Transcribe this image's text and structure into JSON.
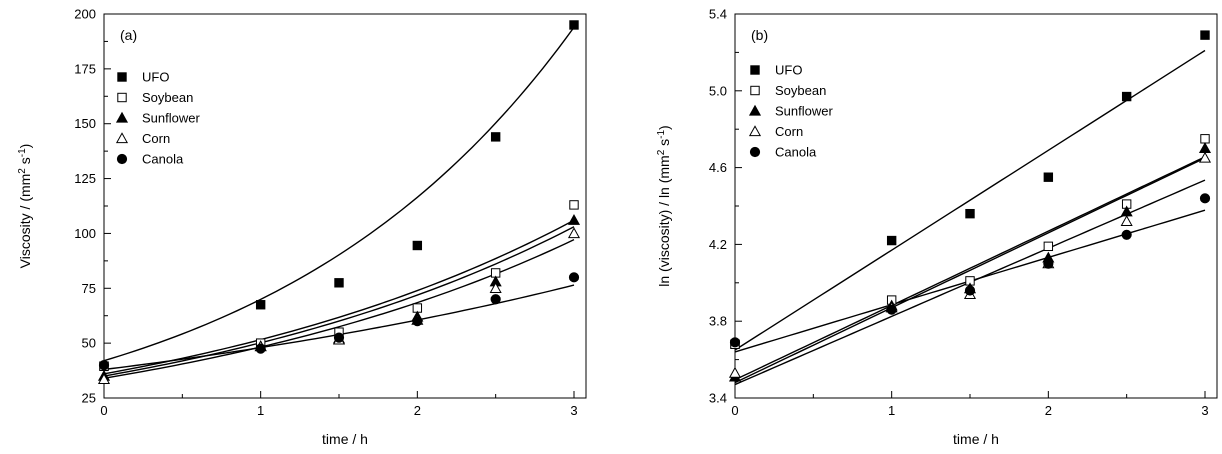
{
  "chart_data": [
    {
      "type": "scatter",
      "panel_label": "(a)",
      "xlabel": "time / h",
      "ylabel": "Viscosity / (mm² s⁻¹)",
      "ylabel_parts": {
        "base": "Viscosity / (mm",
        "sup1": "2",
        "mid": " s",
        "sup2": "-1",
        "end": ")"
      },
      "xlim": [
        0,
        3
      ],
      "ylim": [
        25,
        200
      ],
      "xticks": [
        0,
        1,
        2,
        3
      ],
      "yticks": [
        25,
        50,
        75,
        100,
        125,
        150,
        175,
        200
      ],
      "x": [
        0,
        1,
        1.5,
        2,
        2.5,
        3
      ],
      "fit": "exponential",
      "legend_position": "top-left",
      "series": [
        {
          "name": "UFO",
          "marker": "filled-square",
          "values": [
            39.5,
            67.5,
            77.5,
            94.5,
            144,
            195
          ],
          "fit_params": [
            42.0,
            0.51
          ]
        },
        {
          "name": "Soybean",
          "marker": "open-square",
          "values": [
            39.5,
            50,
            55,
            66,
            82,
            113
          ],
          "fit_params": [
            36.0,
            0.36
          ]
        },
        {
          "name": "Sunflower",
          "marker": "filled-triangle",
          "values": [
            35,
            48.5,
            52,
            62,
            78,
            106
          ],
          "fit_params": [
            35.0,
            0.36
          ]
        },
        {
          "name": "Corn",
          "marker": "open-triangle",
          "values": [
            33.5,
            48.5,
            51.5,
            60.5,
            75,
            100
          ],
          "fit_params": [
            34.0,
            0.35
          ]
        },
        {
          "name": "Canola",
          "marker": "filled-circle",
          "values": [
            40,
            47.5,
            52.5,
            60,
            70,
            80
          ],
          "fit_params": [
            38.0,
            0.233
          ]
        }
      ]
    },
    {
      "type": "scatter",
      "panel_label": "(b)",
      "xlabel": "time / h",
      "ylabel": "ln (viscosity) / ln (mm² s⁻¹)",
      "ylabel_parts": {
        "base": "ln (viscosity) / ln (mm",
        "sup1": "2",
        "mid": " s",
        "sup2": "-1",
        "end": ")"
      },
      "xlim": [
        0,
        3
      ],
      "ylim": [
        3.4,
        5.4
      ],
      "xticks": [
        0,
        1,
        2,
        3
      ],
      "yticks": [
        3.4,
        3.8,
        4.2,
        4.6,
        5.0,
        5.4
      ],
      "ytick_labels": [
        "3.4",
        "3.8",
        "4.2",
        "4.6",
        "5.0",
        "5.4"
      ],
      "x": [
        0,
        1,
        1.5,
        2,
        2.5,
        3
      ],
      "fit": "linear",
      "legend_position": "top-left",
      "series": [
        {
          "name": "UFO",
          "marker": "filled-square",
          "values": [
            3.68,
            4.22,
            4.36,
            4.55,
            4.97,
            5.29
          ],
          "fit_params": [
            3.65,
            0.52
          ]
        },
        {
          "name": "Soybean",
          "marker": "open-square",
          "values": [
            3.68,
            3.91,
            4.01,
            4.19,
            4.41,
            4.75
          ],
          "fit_params": [
            3.495,
            0.387
          ]
        },
        {
          "name": "Sunflower",
          "marker": "filled-triangle",
          "values": [
            3.51,
            3.88,
            3.97,
            4.13,
            4.37,
            4.7
          ],
          "fit_params": [
            3.48,
            0.39
          ]
        },
        {
          "name": "Corn",
          "marker": "open-triangle",
          "values": [
            3.53,
            3.87,
            3.94,
            4.1,
            4.32,
            4.65
          ],
          "fit_params": [
            3.47,
            0.355
          ]
        },
        {
          "name": "Canola",
          "marker": "filled-circle",
          "values": [
            3.69,
            3.86,
            3.96,
            4.1,
            4.25,
            4.44
          ],
          "fit_params": [
            3.64,
            0.246
          ]
        }
      ]
    }
  ]
}
